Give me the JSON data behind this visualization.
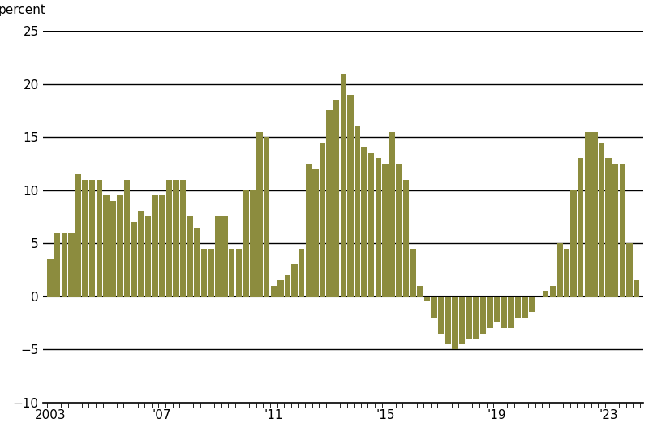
{
  "title": "",
  "ylabel": "percent",
  "bar_color": "#8c8c3e",
  "background_color": "#ffffff",
  "ylim": [
    -10,
    25
  ],
  "yticks": [
    -10,
    -5,
    0,
    5,
    10,
    15,
    20,
    25
  ],
  "grid_ticks": [
    -5,
    0,
    5,
    10,
    15,
    20,
    25
  ],
  "xtick_labels": [
    "2003",
    "'07",
    "'11",
    "'15",
    "'19",
    "'23"
  ],
  "xtick_positions": [
    0,
    16,
    32,
    48,
    64,
    80
  ],
  "values": [
    3.5,
    6.0,
    6.0,
    6.0,
    11.5,
    11.0,
    11.0,
    11.0,
    9.5,
    9.0,
    9.5,
    11.0,
    7.0,
    8.0,
    7.5,
    9.5,
    9.5,
    11.0,
    11.0,
    11.0,
    7.5,
    6.5,
    4.5,
    4.5,
    7.5,
    7.5,
    4.5,
    4.5,
    10.0,
    10.0,
    15.5,
    15.0,
    1.0,
    1.5,
    2.0,
    3.0,
    4.5,
    12.5,
    12.0,
    14.5,
    17.5,
    18.5,
    21.0,
    19.0,
    16.0,
    14.0,
    13.5,
    13.0,
    12.5,
    15.5,
    12.5,
    11.0,
    4.5,
    1.0,
    -0.5,
    -2.0,
    -3.5,
    -4.5,
    -5.0,
    -4.5,
    -4.0,
    -4.0,
    -3.5,
    -3.0,
    -2.5,
    -3.0,
    -3.0,
    -2.0,
    -2.0,
    -1.5,
    0.0,
    0.5,
    1.0,
    5.0,
    4.5,
    10.0,
    13.0,
    15.5,
    15.5,
    14.5,
    13.0,
    12.5,
    12.5,
    5.0,
    1.5
  ]
}
